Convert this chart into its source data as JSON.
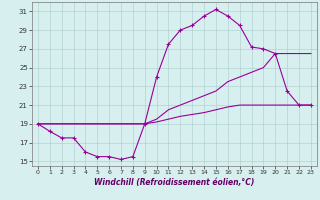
{
  "xlabel": "Windchill (Refroidissement éolien,°C)",
  "background_color": "#d7efef",
  "line_color": "#990099",
  "xlim": [
    -0.5,
    23.5
  ],
  "ylim": [
    14.5,
    32
  ],
  "yticks": [
    15,
    17,
    19,
    21,
    23,
    25,
    27,
    29,
    31
  ],
  "xticks": [
    0,
    1,
    2,
    3,
    4,
    5,
    6,
    7,
    8,
    9,
    10,
    11,
    12,
    13,
    14,
    15,
    16,
    17,
    18,
    19,
    20,
    21,
    22,
    23
  ],
  "series": [
    {
      "x": [
        0,
        1,
        2,
        3,
        4,
        5,
        6,
        7,
        8,
        9,
        10,
        11,
        12,
        13,
        14,
        15,
        16,
        17,
        18,
        19,
        20,
        21,
        22,
        23
      ],
      "y": [
        19,
        18.2,
        17.5,
        17.5,
        16.0,
        15.5,
        15.5,
        15.2,
        15.5,
        19.0,
        24.0,
        27.5,
        29.0,
        29.5,
        30.5,
        31.2,
        30.5,
        29.5,
        27.2,
        27.0,
        26.5,
        22.5,
        21.0,
        21.0
      ],
      "marker": "+"
    },
    {
      "x": [
        0,
        1,
        2,
        3,
        4,
        5,
        6,
        7,
        8,
        9,
        10,
        11,
        12,
        13,
        14,
        15,
        16,
        17,
        18,
        19,
        20,
        21,
        22,
        23
      ],
      "y": [
        19,
        19,
        19,
        19,
        19,
        19,
        19,
        19,
        19,
        19,
        19.5,
        20.5,
        21.0,
        21.5,
        22.0,
        22.5,
        23.5,
        24.0,
        24.5,
        25.0,
        26.5,
        26.5,
        26.5,
        26.5
      ],
      "marker": null
    },
    {
      "x": [
        0,
        1,
        2,
        3,
        4,
        5,
        6,
        7,
        8,
        9,
        10,
        11,
        12,
        13,
        14,
        15,
        16,
        17,
        18,
        19,
        20,
        21,
        22,
        23
      ],
      "y": [
        19,
        19,
        19,
        19,
        19,
        19,
        19,
        19,
        19,
        19,
        19.2,
        19.5,
        19.8,
        20.0,
        20.2,
        20.5,
        20.8,
        21.0,
        21.0,
        21.0,
        21.0,
        21.0,
        21.0,
        21.0
      ],
      "marker": null
    }
  ]
}
